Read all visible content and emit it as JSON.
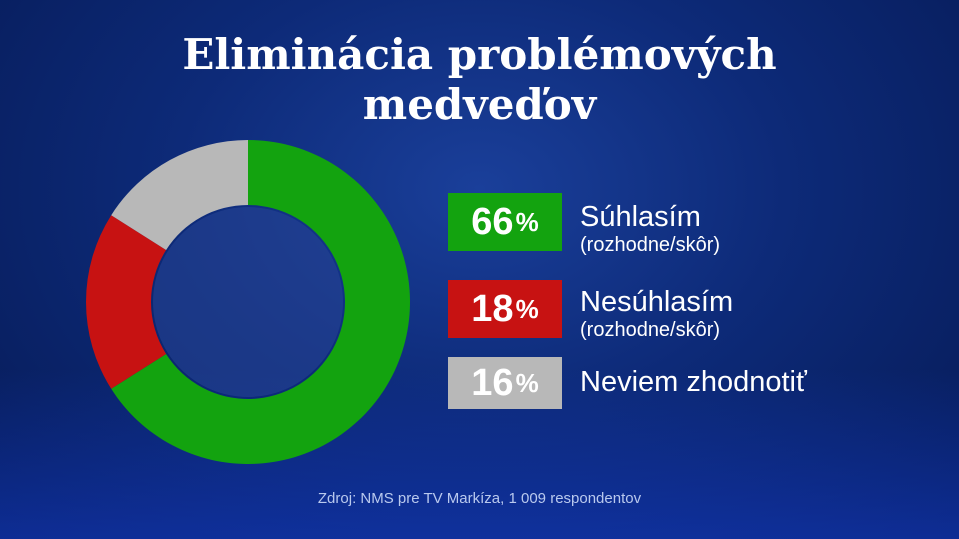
{
  "header": {
    "title_line1": "Eliminácia problémových",
    "title_line2": "medveďov"
  },
  "chart_data": {
    "type": "pie",
    "donut": true,
    "unit": "%",
    "categories": [
      "Súhlasím",
      "Nesúhlasím",
      "Neviem zhodnotiť"
    ],
    "values": [
      66,
      18,
      16
    ],
    "sublabels": [
      "(rozhodne/skôr)",
      "(rozhodne/skôr)",
      ""
    ],
    "colors": [
      "#13a30f",
      "#c71212",
      "#b8b8b8"
    ],
    "title": "Eliminácia problémových medveďov",
    "legend_placement": "right"
  },
  "footer": {
    "source": "Zdroj: NMS pre TV Markíza, 1 009 respondentov"
  }
}
